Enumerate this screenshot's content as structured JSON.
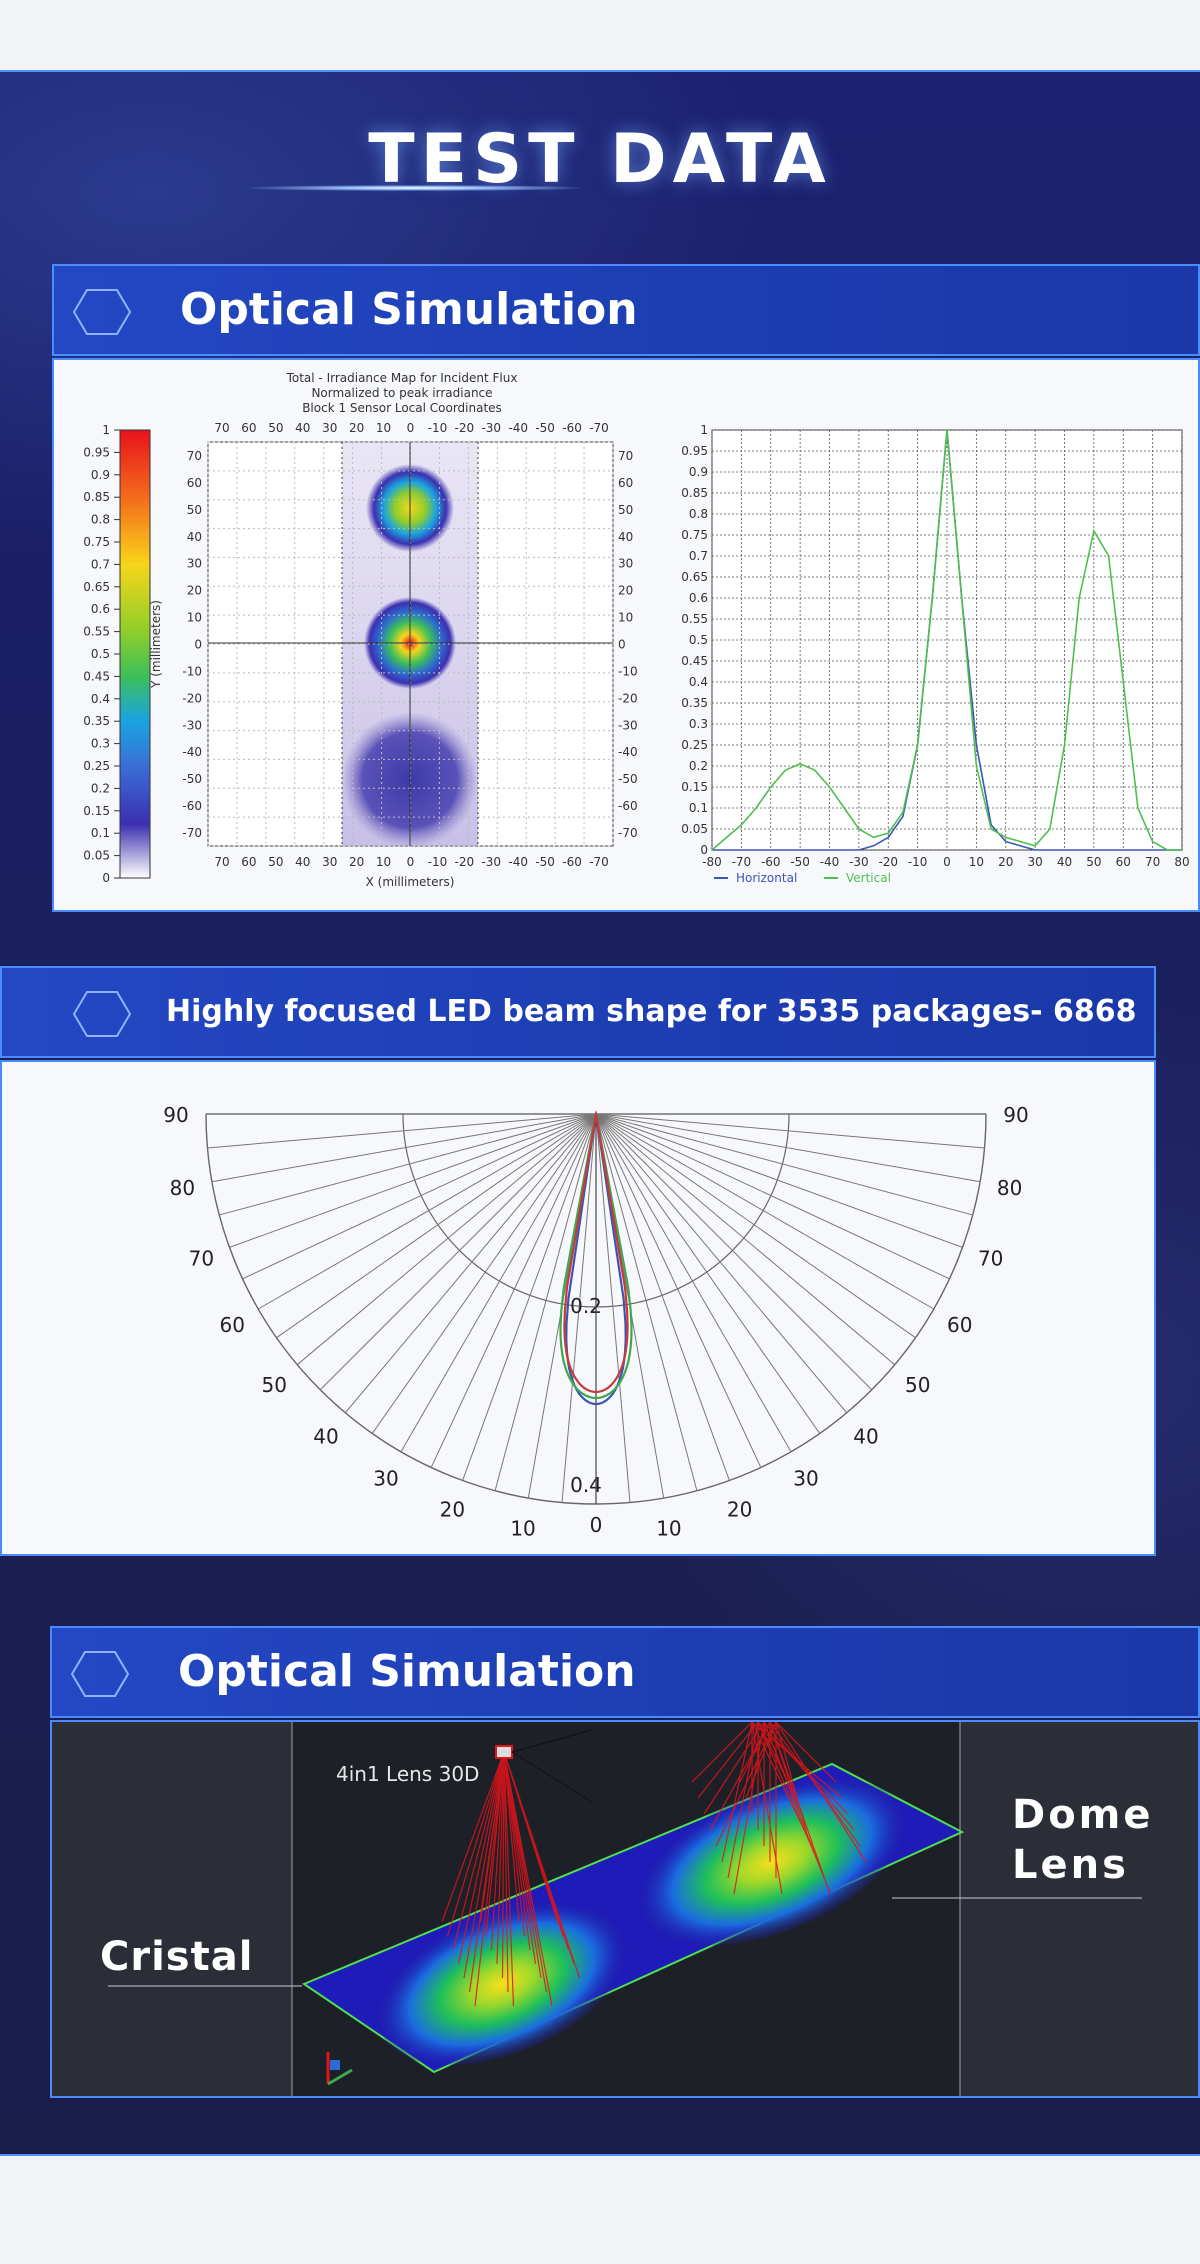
{
  "page": {
    "title": "TEST DATA"
  },
  "sections": [
    {
      "header": "Optical Simulation"
    },
    {
      "header": "Highly focused LED beam shape for 3535 packages- 6868"
    },
    {
      "header": "Optical Simulation"
    }
  ],
  "irradiance_map": {
    "title_lines": [
      "Total - Irradiance Map for Incident Flux",
      "Normalized to peak irradiance",
      "Block 1 Sensor    Local Coordinates"
    ],
    "xlabel": "X (millimeters)",
    "ylabel": "Y (millimeters)",
    "x_ticks": [
      "70",
      "60",
      "50",
      "40",
      "30",
      "20",
      "10",
      "0",
      "-10",
      "-20",
      "-30",
      "-40",
      "-50",
      "-60",
      "-70"
    ],
    "y_ticks": [
      "70",
      "60",
      "50",
      "40",
      "30",
      "20",
      "10",
      "0",
      "-10",
      "-20",
      "-30",
      "-40",
      "-50",
      "-60",
      "-70"
    ],
    "colorbar_ticks": [
      "1",
      "0.95",
      "0.9",
      "0.85",
      "0.8",
      "0.75",
      "0.7",
      "0.65",
      "0.6",
      "0.55",
      "0.5",
      "0.45",
      "0.4",
      "0.35",
      "0.3",
      "0.25",
      "0.2",
      "0.15",
      "0.1",
      "0.05",
      "0"
    ]
  },
  "chart_data": [
    {
      "type": "line",
      "title": "",
      "xlim": [
        -80,
        80
      ],
      "ylim": [
        0,
        1
      ],
      "grid": true,
      "legend": "bottom-left",
      "x_ticks": [
        -80,
        -70,
        -60,
        -50,
        -40,
        -30,
        -20,
        -10,
        0,
        10,
        20,
        30,
        40,
        50,
        60,
        70,
        80
      ],
      "y_ticks": [
        0,
        0.05,
        0.1,
        0.15,
        0.2,
        0.25,
        0.3,
        0.35,
        0.4,
        0.45,
        0.5,
        0.55,
        0.6,
        0.65,
        0.7,
        0.75,
        0.8,
        0.85,
        0.9,
        0.95,
        1
      ],
      "series": [
        {
          "name": "Horizontal",
          "color": "#3b55b5",
          "x": [
            -80,
            -70,
            -60,
            -50,
            -40,
            -30,
            -25,
            -20,
            -15,
            -10,
            -5,
            0,
            5,
            10,
            15,
            20,
            30,
            40,
            45,
            50,
            55,
            60,
            70,
            80
          ],
          "y": [
            0,
            0,
            0,
            0,
            0,
            0,
            0.01,
            0.03,
            0.08,
            0.25,
            0.6,
            1.0,
            0.6,
            0.25,
            0.06,
            0.02,
            0,
            0,
            0,
            0,
            0,
            0,
            0,
            0
          ]
        },
        {
          "name": "Vertical",
          "color": "#4fbf4f",
          "x": [
            -80,
            -75,
            -70,
            -65,
            -60,
            -55,
            -50,
            -45,
            -40,
            -35,
            -30,
            -25,
            -20,
            -15,
            -10,
            -5,
            0,
            5,
            10,
            15,
            20,
            25,
            30,
            35,
            40,
            45,
            50,
            55,
            60,
            65,
            70,
            75,
            80
          ],
          "y": [
            0,
            0.03,
            0.06,
            0.1,
            0.15,
            0.19,
            0.205,
            0.19,
            0.15,
            0.1,
            0.05,
            0.03,
            0.04,
            0.09,
            0.25,
            0.6,
            1.0,
            0.6,
            0.2,
            0.05,
            0.03,
            0.02,
            0.01,
            0.05,
            0.25,
            0.6,
            0.76,
            0.7,
            0.4,
            0.1,
            0.02,
            0,
            0
          ]
        }
      ]
    },
    {
      "type": "polar",
      "title": "",
      "angle_ticks_left": [
        "90",
        "80",
        "70",
        "60",
        "50",
        "40",
        "30",
        "20",
        "10"
      ],
      "angle_ticks_right": [
        "90",
        "80",
        "70",
        "60",
        "50",
        "40",
        "30",
        "20",
        "10"
      ],
      "angle_zero": "0",
      "radial_ticks": [
        "0.2",
        "0.4"
      ],
      "series": [
        {
          "name": "",
          "color": "#3b55b5",
          "half_angle_deg": 9
        },
        {
          "name": "",
          "color": "#3fa84f",
          "half_angle_deg": 11
        },
        {
          "name": "",
          "color": "#c83a3a",
          "half_angle_deg": 10
        }
      ]
    }
  ],
  "sim3d": {
    "lens_label": "4in1 Lens 30D",
    "left_label": "Cristal",
    "right_label_1": "Dome",
    "right_label_2": "Lens"
  }
}
